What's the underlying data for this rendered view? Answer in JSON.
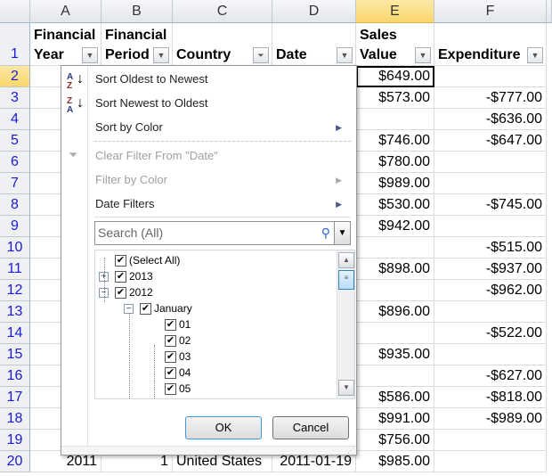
{
  "columns": [
    "A",
    "B",
    "C",
    "D",
    "E",
    "F"
  ],
  "selected_cell": "E2",
  "headers": {
    "A": "Financial Year",
    "B": "Financial Period",
    "C": "Country",
    "D": "Date",
    "E": "Sales Value",
    "F": "Expenditure"
  },
  "header_lines": {
    "A": [
      "Financial",
      "Year"
    ],
    "B": [
      "Financial",
      "Period"
    ],
    "C": [
      "",
      "Country"
    ],
    "D": [
      "",
      "Date"
    ],
    "E": [
      "Sales",
      "Value"
    ],
    "F": [
      "",
      "Expenditure"
    ]
  },
  "rows": [
    {
      "n": "1"
    },
    {
      "n": "2",
      "E": "$649.00",
      "F": ""
    },
    {
      "n": "3",
      "E": "$573.00",
      "F": "-$777.00"
    },
    {
      "n": "4",
      "E": "",
      "F": "-$636.00"
    },
    {
      "n": "5",
      "E": "$746.00",
      "F": "-$647.00"
    },
    {
      "n": "6",
      "E": "$780.00",
      "F": ""
    },
    {
      "n": "7",
      "E": "$989.00",
      "F": ""
    },
    {
      "n": "8",
      "E": "$530.00",
      "F": "-$745.00"
    },
    {
      "n": "9",
      "E": "$942.00",
      "F": ""
    },
    {
      "n": "10",
      "E": "",
      "F": "-$515.00"
    },
    {
      "n": "11",
      "E": "$898.00",
      "F": "-$937.00"
    },
    {
      "n": "12",
      "E": "",
      "F": "-$962.00"
    },
    {
      "n": "13",
      "E": "$896.00",
      "F": ""
    },
    {
      "n": "14",
      "E": "",
      "F": "-$522.00"
    },
    {
      "n": "15",
      "E": "$935.00",
      "F": ""
    },
    {
      "n": "16",
      "E": "",
      "F": "-$627.00"
    },
    {
      "n": "17",
      "E": "$586.00",
      "F": "-$818.00"
    },
    {
      "n": "18",
      "E": "$991.00",
      "F": "-$989.00"
    },
    {
      "n": "19",
      "E": "$756.00",
      "F": ""
    },
    {
      "n": "20",
      "A": "2011",
      "B": "1",
      "C": "United States",
      "D": "2011-01-19",
      "E": "$985.00",
      "F": ""
    }
  ],
  "menu": {
    "items": [
      {
        "label": "Sort Oldest to Newest",
        "icon": "sort-ascending-icon",
        "disabled": false,
        "submenu": false
      },
      {
        "label": "Sort Newest to Oldest",
        "icon": "sort-descending-icon",
        "disabled": false,
        "submenu": false
      },
      {
        "label": "Sort by Color",
        "disabled": false,
        "submenu": true
      },
      {
        "label": "Clear Filter From \"Date\"",
        "icon": "clear-filter-icon",
        "disabled": true,
        "submenu": false
      },
      {
        "label": "Filter by Color",
        "disabled": true,
        "submenu": true
      },
      {
        "label": "Date Filters",
        "disabled": false,
        "submenu": true
      }
    ],
    "search_placeholder": "Search (All)",
    "tree": [
      {
        "label": "(Select All)",
        "checked": true,
        "level": 0
      },
      {
        "label": "2013",
        "checked": true,
        "level": 0,
        "expander": "+"
      },
      {
        "label": "2012",
        "checked": true,
        "level": 0,
        "expander": "−"
      },
      {
        "label": "January",
        "checked": true,
        "level": 1,
        "expander": "−"
      },
      {
        "label": "01",
        "checked": true,
        "level": 2
      },
      {
        "label": "02",
        "checked": true,
        "level": 2
      },
      {
        "label": "03",
        "checked": true,
        "level": 2
      },
      {
        "label": "04",
        "checked": true,
        "level": 2
      },
      {
        "label": "05",
        "checked": true,
        "level": 2
      }
    ],
    "ok": "OK",
    "cancel": "Cancel"
  }
}
